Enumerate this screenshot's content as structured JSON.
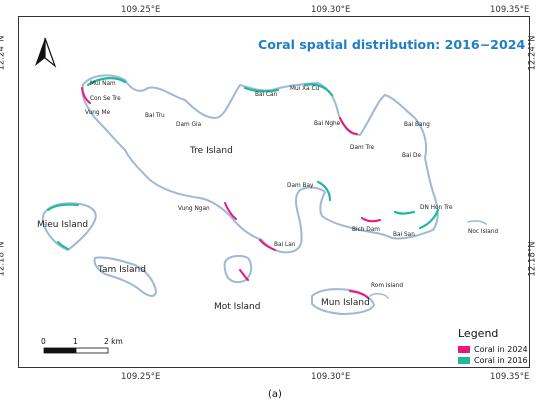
{
  "map": {
    "title": "Coral spatial distribution: 2016−2024",
    "caption": "(a)",
    "lon_labels": [
      "109.25°E",
      "109.30°E",
      "109.35°E"
    ],
    "lat_labels": [
      "12.24°N",
      "12.18°N"
    ],
    "north_arrow": "north-arrow-icon",
    "islands": [
      "Tre Island",
      "Mieu Island",
      "Tam Island",
      "Mot Island",
      "Mun Island",
      "Noc Island",
      "Rom Island"
    ],
    "places": [
      "Mui Nam",
      "Con Se Tre",
      "Vung Me",
      "Bai Tru",
      "Dam Gia",
      "Bai Can",
      "Mui Xa Cu",
      "Bai Nghe",
      "Dam Tre",
      "Bai Bang",
      "Bai De",
      "Dam Bay",
      "DN Hon Tre",
      "Bich Dam",
      "Bai San",
      "Vung Ngan",
      "Bai Lan"
    ],
    "scale": {
      "labels": [
        "0",
        "1",
        "2 km"
      ]
    },
    "legend": {
      "title": "Legend",
      "items": [
        {
          "label": "Coral in 2024",
          "color": "#e8177d"
        },
        {
          "label": "Coral in 2016",
          "color": "#1fb89a"
        }
      ]
    }
  }
}
